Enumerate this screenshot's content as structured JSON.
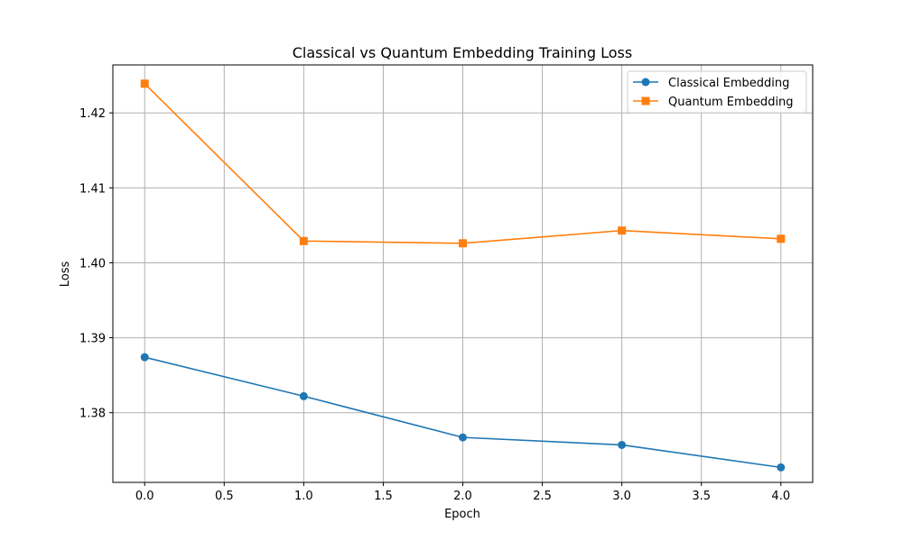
{
  "chart_data": {
    "type": "line",
    "title": "Classical vs Quantum Embedding Training Loss",
    "xlabel": "Epoch",
    "ylabel": "Loss",
    "xlim": [
      -0.2,
      4.2
    ],
    "ylim": [
      1.3707,
      1.4264
    ],
    "x_ticks": [
      "0.0",
      "0.5",
      "1.0",
      "1.5",
      "2.0",
      "2.5",
      "3.0",
      "3.5",
      "4.0"
    ],
    "y_ticks": [
      "1.38",
      "1.39",
      "1.40",
      "1.41",
      "1.42"
    ],
    "grid": true,
    "legend_position": "top-right",
    "series": [
      {
        "name": "Classical Embedding",
        "color": "#1f77b4",
        "marker": "circle",
        "x": [
          0,
          1,
          2,
          3,
          4
        ],
        "values": [
          1.3874,
          1.3822,
          1.3767,
          1.3757,
          1.3727
        ]
      },
      {
        "name": "Quantum Embedding",
        "color": "#ff7f0e",
        "marker": "square",
        "x": [
          0,
          1,
          2,
          3,
          4
        ],
        "values": [
          1.4239,
          1.4029,
          1.4026,
          1.4043,
          1.4032
        ]
      }
    ]
  }
}
